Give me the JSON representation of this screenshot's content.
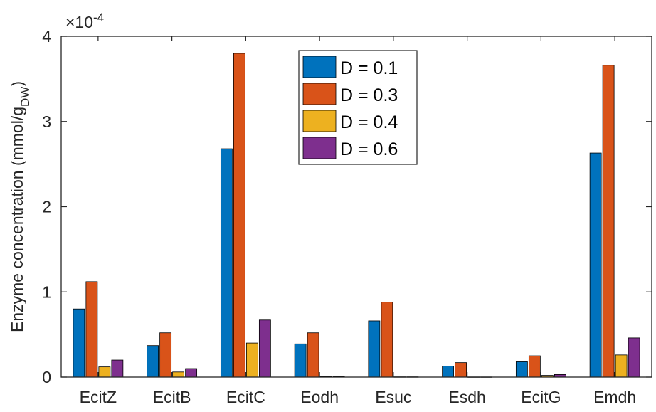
{
  "chart_data": {
    "type": "bar",
    "categories": [
      "EcitZ",
      "EcitB",
      "EcitC",
      "Eodh",
      "Esuc",
      "Esdh",
      "EcitG",
      "Emdh"
    ],
    "series": [
      {
        "name": "D = 0.1",
        "color": "#0072BD",
        "values": [
          0.8,
          0.37,
          2.68,
          0.39,
          0.66,
          0.13,
          0.18,
          2.63
        ]
      },
      {
        "name": "D = 0.3",
        "color": "#D95319",
        "values": [
          1.12,
          0.52,
          3.8,
          0.52,
          0.88,
          0.17,
          0.25,
          3.66
        ]
      },
      {
        "name": "D = 0.4",
        "color": "#EDB120",
        "values": [
          0.12,
          0.06,
          0.4,
          0.005,
          0.003,
          0.002,
          0.02,
          0.26
        ]
      },
      {
        "name": "D = 0.6",
        "color": "#7E2F8E",
        "values": [
          0.2,
          0.1,
          0.67,
          0.005,
          0.003,
          0.002,
          0.03,
          0.46
        ]
      }
    ],
    "ylabel_main": "Enzyme concentration (mmol/g",
    "ylabel_sub": "DW",
    "ylabel_end": ")",
    "exponent_base": "×10",
    "exponent_power": "-4",
    "yticks": [
      "0",
      "1",
      "2",
      "3",
      "4"
    ],
    "ylim": [
      0,
      4
    ],
    "grid": false,
    "legend_position": "top-center"
  }
}
